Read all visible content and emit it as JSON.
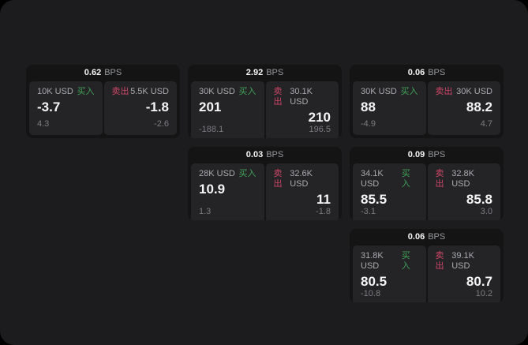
{
  "labels": {
    "bps": "BPS",
    "buy": "买入",
    "sell": "卖出"
  },
  "colors": {
    "outer_background": "#000000",
    "window_background": "#1c1c1e",
    "card_background": "#141415",
    "panel_background": "#242426",
    "value_white": "#f5f5f6",
    "buy_green": "#40a158",
    "sell_red": "#cc4668",
    "label_gray": "#a9aaae",
    "muted_gray": "#7b7c80"
  },
  "cards": [
    {
      "bps": "0.62",
      "buy": {
        "amount": "10K USD",
        "price": "-3.7",
        "delta": "4.3"
      },
      "sell": {
        "amount": "5.5K USD",
        "price": "-1.8",
        "delta": "-2.6"
      }
    },
    {
      "bps": "2.92",
      "buy": {
        "amount": "30K USD",
        "price": "201",
        "delta": "-188.1"
      },
      "sell": {
        "amount": "30.1K USD",
        "price": "210",
        "delta": "196.5"
      }
    },
    {
      "bps": "0.06",
      "buy": {
        "amount": "30K USD",
        "price": "88",
        "delta": "-4.9"
      },
      "sell": {
        "amount": "30K USD",
        "price": "88.2",
        "delta": "4.7"
      }
    },
    {
      "bps": "0.03",
      "buy": {
        "amount": "28K USD",
        "price": "10.9",
        "delta": "1.3"
      },
      "sell": {
        "amount": "32.6K USD",
        "price": "11",
        "delta": "-1.8"
      }
    },
    {
      "bps": "0.09",
      "buy": {
        "amount": "34.1K USD",
        "price": "85.5",
        "delta": "-3.1"
      },
      "sell": {
        "amount": "32.8K USD",
        "price": "85.8",
        "delta": "3.0"
      }
    },
    {
      "bps": "0.06",
      "buy": {
        "amount": "31.8K USD",
        "price": "80.5",
        "delta": "-10.8"
      },
      "sell": {
        "amount": "39.1K USD",
        "price": "80.7",
        "delta": "10.2"
      }
    }
  ]
}
